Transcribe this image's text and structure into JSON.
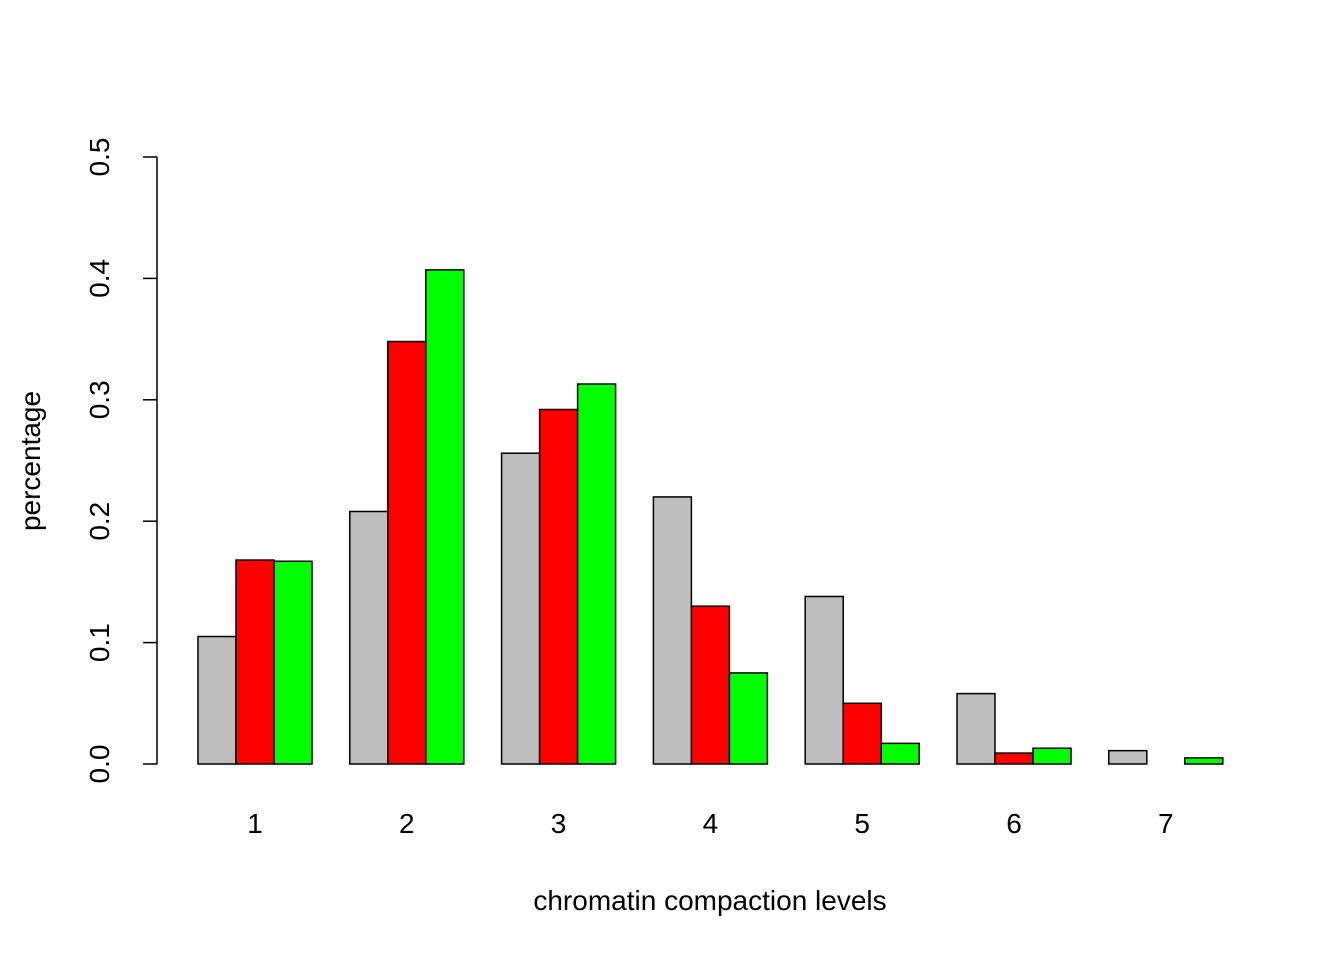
{
  "chart_data": {
    "type": "bar",
    "title": "",
    "xlabel": "chromatin compaction levels",
    "ylabel": "percentage",
    "categories": [
      "1",
      "2",
      "3",
      "4",
      "5",
      "6",
      "7"
    ],
    "series": [
      {
        "color": "#bebebe",
        "values": [
          0.105,
          0.208,
          0.256,
          0.22,
          0.138,
          0.058,
          0.011
        ]
      },
      {
        "color": "#ff0000",
        "values": [
          0.168,
          0.348,
          0.292,
          0.13,
          0.05,
          0.009,
          0.0
        ]
      },
      {
        "color": "#00ff00",
        "values": [
          0.167,
          0.407,
          0.313,
          0.075,
          0.017,
          0.013,
          0.005
        ]
      }
    ],
    "ylim": [
      0,
      0.5
    ],
    "yticks": [
      "0.0",
      "0.1",
      "0.2",
      "0.3",
      "0.4",
      "0.5"
    ],
    "grid": false,
    "legend": "none"
  }
}
